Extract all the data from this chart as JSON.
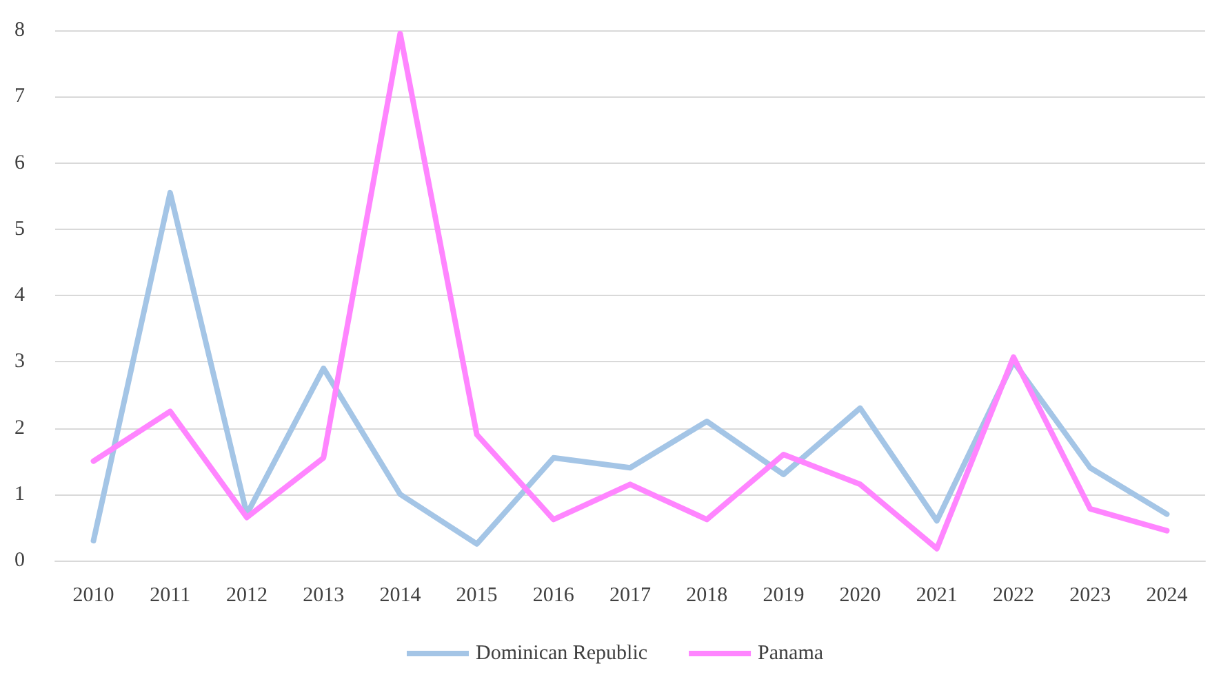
{
  "chart_data": {
    "type": "line",
    "categories": [
      "2010",
      "2011",
      "2012",
      "2013",
      "2014",
      "2015",
      "2016",
      "2017",
      "2018",
      "2019",
      "2020",
      "2021",
      "2022",
      "2023",
      "2024"
    ],
    "series": [
      {
        "name": "Dominican Republic",
        "color": "#a4c5e6",
        "values": [
          0.3,
          5.55,
          0.7,
          2.9,
          1.0,
          0.25,
          1.55,
          1.4,
          2.1,
          1.3,
          2.3,
          0.6,
          3.0,
          1.4,
          0.7
        ]
      },
      {
        "name": "Panama",
        "color": "#ff85ff",
        "values": [
          1.5,
          2.25,
          0.65,
          1.55,
          7.95,
          1.9,
          0.62,
          1.15,
          0.62,
          1.6,
          1.15,
          0.18,
          3.07,
          0.78,
          0.45
        ]
      }
    ],
    "ylim": [
      0,
      8
    ],
    "yticks": [
      0,
      1,
      2,
      3,
      4,
      5,
      6,
      7,
      8
    ],
    "grid": "y",
    "legend": "bottom",
    "marker": "none",
    "line_style": "solid"
  }
}
